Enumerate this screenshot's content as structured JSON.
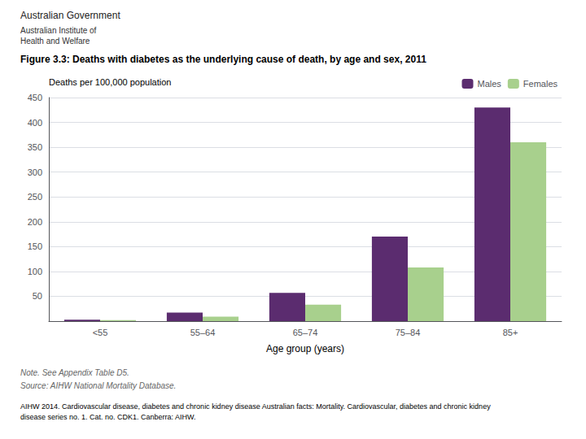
{
  "chart_data": {
    "type": "bar",
    "title": "Figure 3.3: Deaths with diabetes as the underlying cause of death, by age and sex, 2011",
    "xlabel": "Age group (years)",
    "ylabel": "Deaths per 100,000 population",
    "categories": [
      "<55",
      "55–64",
      "65–74",
      "75–84",
      "85+"
    ],
    "series": [
      {
        "name": "Males",
        "color": "#5b2c6f",
        "values": [
          3,
          17,
          57,
          170,
          430
        ]
      },
      {
        "name": "Females",
        "color": "#a8d08d",
        "values": [
          2,
          9,
          33,
          108,
          360
        ]
      }
    ],
    "ylim": [
      0,
      450
    ],
    "yticks": [
      50,
      100,
      150,
      200,
      250,
      300,
      350,
      400,
      450
    ],
    "grid": true,
    "legend": "top",
    "annotations": [
      "Australian Government",
      "Australian Institute of\nHealth and Welfare",
      "Note. See Appendix Table D5.",
      "Source: AIHW National Mortality Database.",
      "AIHW 2014. Cardiovascular disease, diabetes and chronic kidney disease Australian facts: Mortality. Cardiovascular, diabetes and chronic kidney\ndisease series no. 1. Cat. no. CDK1. Canberra: AIHW."
    ]
  }
}
